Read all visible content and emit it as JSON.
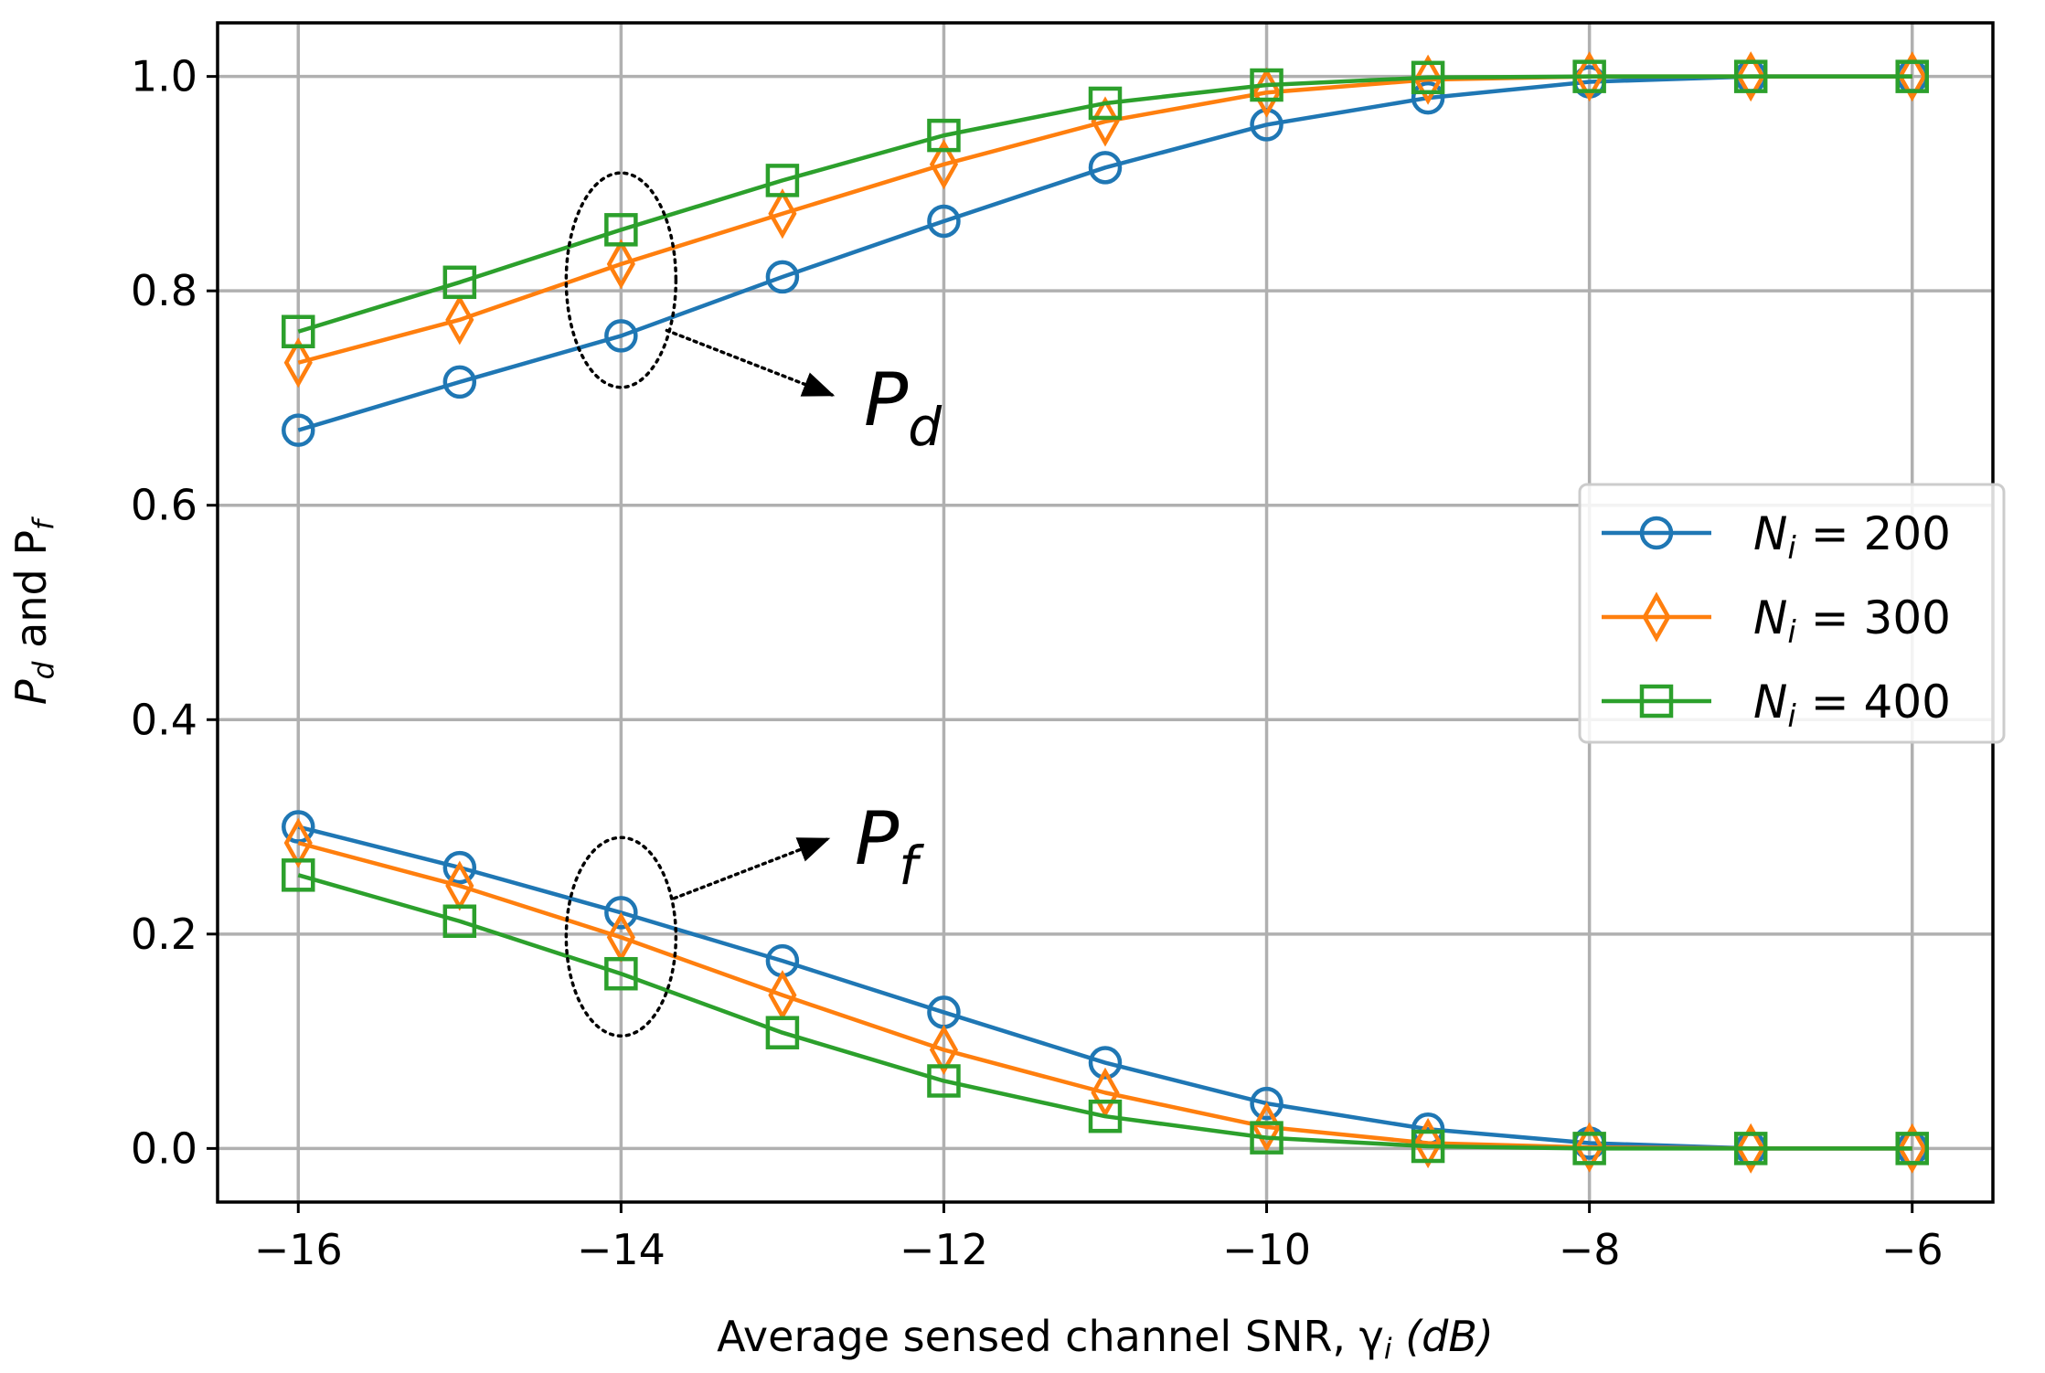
{
  "chart_data": {
    "type": "line",
    "title": "",
    "xlabel": "Average sensed channel SNR, γ",
    "xlabel_sub": "i",
    "xlabel_unit": "(dB)",
    "ylabel": "P",
    "ylabel_sub1": "d",
    "ylabel_mid": " and P",
    "ylabel_sub2": "f",
    "xlim": [
      -16.5,
      -5.5
    ],
    "ylim": [
      -0.05,
      1.05
    ],
    "xticks": [
      -16,
      -14,
      -12,
      -10,
      -8,
      -6
    ],
    "xtick_labels": [
      "−16",
      "−14",
      "−12",
      "−10",
      "−8",
      "−6"
    ],
    "yticks": [
      0.0,
      0.2,
      0.4,
      0.6,
      0.8,
      1.0
    ],
    "ytick_labels": [
      "0.0",
      "0.2",
      "0.4",
      "0.6",
      "0.8",
      "1.0"
    ],
    "grid": true,
    "legend_position": "center-right",
    "x": [
      -16,
      -15,
      -14,
      -13,
      -12,
      -11,
      -10,
      -9,
      -8,
      -7,
      -6
    ],
    "series": [
      {
        "name": "N_i = 200",
        "legend_label": "N",
        "legend_sub": "i",
        "legend_value": " = 200",
        "color": "#1f77b4",
        "marker": "circle",
        "pd": [
          0.67,
          0.715,
          0.758,
          0.813,
          0.865,
          0.915,
          0.955,
          0.98,
          0.995,
          1.0,
          1.0
        ],
        "pf": [
          0.3,
          0.262,
          0.22,
          0.175,
          0.127,
          0.08,
          0.042,
          0.018,
          0.005,
          0.0,
          0.0
        ]
      },
      {
        "name": "N_i = 300",
        "legend_label": "N",
        "legend_sub": "i",
        "legend_value": " = 300",
        "color": "#ff7f0e",
        "marker": "diamond",
        "pd": [
          0.733,
          0.773,
          0.825,
          0.872,
          0.918,
          0.958,
          0.985,
          0.997,
          1.0,
          1.0,
          1.0
        ],
        "pf": [
          0.285,
          0.245,
          0.197,
          0.143,
          0.092,
          0.052,
          0.02,
          0.005,
          0.001,
          0.0,
          0.0
        ]
      },
      {
        "name": "N_i = 400",
        "legend_label": "N",
        "legend_sub": "i",
        "legend_value": " = 400",
        "color": "#2ca02c",
        "marker": "square",
        "pd": [
          0.762,
          0.808,
          0.857,
          0.903,
          0.945,
          0.975,
          0.992,
          0.999,
          1.0,
          1.0,
          1.0
        ],
        "pf": [
          0.255,
          0.212,
          0.163,
          0.108,
          0.063,
          0.03,
          0.01,
          0.002,
          0.0,
          0.0,
          0.0
        ]
      }
    ],
    "annotations": [
      {
        "label": "P",
        "sub": "d",
        "ellipse_x": -14,
        "ellipse_y_range": [
          0.71,
          0.91
        ]
      },
      {
        "label": "P",
        "sub": "f",
        "ellipse_x": -14,
        "ellipse_y_range": [
          0.105,
          0.29
        ]
      }
    ]
  }
}
